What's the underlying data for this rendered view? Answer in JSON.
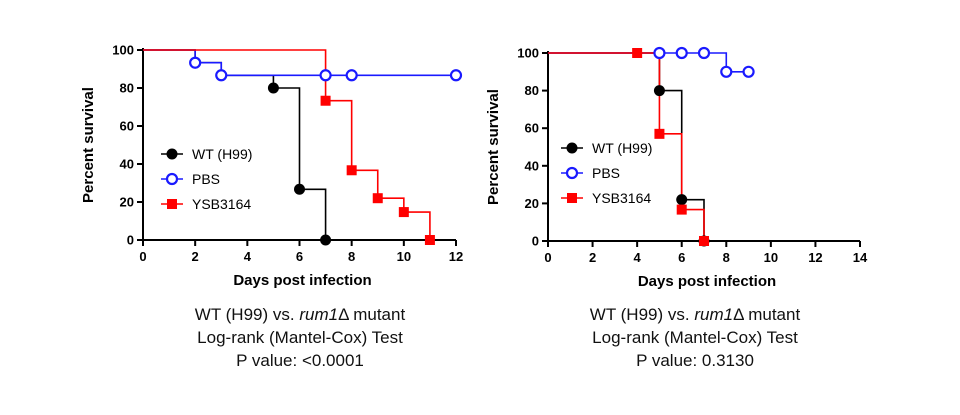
{
  "chart_data": [
    {
      "type": "line",
      "step": true,
      "xlabel": "Days post infection",
      "ylabel": "Percent survival",
      "xlim": [
        0,
        12
      ],
      "ylim": [
        0,
        100
      ],
      "xticks": [
        "0",
        "2",
        "4",
        "6",
        "8",
        "10",
        "12"
      ],
      "yticks": [
        "0",
        "20",
        "40",
        "60",
        "80",
        "100"
      ],
      "legend_position": "left-middle",
      "series": [
        {
          "name": "WT (H99)",
          "color": "#000000",
          "marker": "circle-filled",
          "x": [
            0,
            2,
            3,
            5,
            6,
            7
          ],
          "y": [
            100,
            93.3,
            86.7,
            80,
            26.7,
            0
          ],
          "marked": [
            2,
            3,
            5,
            6,
            7
          ]
        },
        {
          "name": "PBS",
          "color": "#1a1aff",
          "marker": "circle-open",
          "x": [
            0,
            2,
            3,
            7,
            8,
            12
          ],
          "y": [
            100,
            93.3,
            86.7,
            86.7,
            86.7,
            86.7
          ],
          "marked": [
            2,
            3,
            7,
            8,
            12
          ]
        },
        {
          "name": "YSB3164",
          "color": "#ff0000",
          "marker": "square-filled",
          "x": [
            0,
            2,
            7,
            8,
            9,
            10,
            11
          ],
          "y": [
            100,
            100,
            73.3,
            36.7,
            22,
            14.7,
            0
          ],
          "marked": [
            7,
            8,
            9,
            10,
            11
          ]
        }
      ]
    },
    {
      "type": "line",
      "step": true,
      "xlabel": "Days post infection",
      "ylabel": "Percent survival",
      "xlim": [
        0,
        14
      ],
      "ylim": [
        0,
        100
      ],
      "xticks": [
        "0",
        "2",
        "4",
        "6",
        "8",
        "10",
        "12",
        "14"
      ],
      "yticks": [
        "0",
        "20",
        "40",
        "60",
        "80",
        "100"
      ],
      "legend_position": "left-middle",
      "series": [
        {
          "name": "WT (H99)",
          "color": "#000000",
          "marker": "circle-filled",
          "x": [
            0,
            5,
            6,
            7
          ],
          "y": [
            100,
            80,
            22,
            0
          ],
          "marked": [
            5,
            6,
            7
          ]
        },
        {
          "name": "PBS",
          "color": "#1a1aff",
          "marker": "circle-open",
          "x": [
            0,
            5,
            6,
            7,
            8,
            9
          ],
          "y": [
            100,
            100,
            100,
            100,
            90,
            90
          ],
          "marked": [
            5,
            6,
            7,
            8,
            9
          ]
        },
        {
          "name": "YSB3164",
          "color": "#ff0000",
          "marker": "square-filled",
          "x": [
            0,
            4,
            5,
            6,
            7
          ],
          "y": [
            100,
            100,
            57,
            16.7,
            0
          ],
          "marked": [
            4,
            5,
            6,
            7
          ]
        }
      ]
    }
  ],
  "captions": [
    {
      "line1_pre": "WT (H99) vs. ",
      "line1_em": "rum1",
      "line1_post": "Δ mutant",
      "line2": "Log-rank (Mantel-Cox) Test",
      "line3": "P value: <0.0001"
    },
    {
      "line1_pre": "WT (H99) vs. ",
      "line1_em": "rum1",
      "line1_post": "Δ mutant",
      "line2": "Log-rank (Mantel-Cox) Test",
      "line3": "P value: 0.3130"
    }
  ]
}
